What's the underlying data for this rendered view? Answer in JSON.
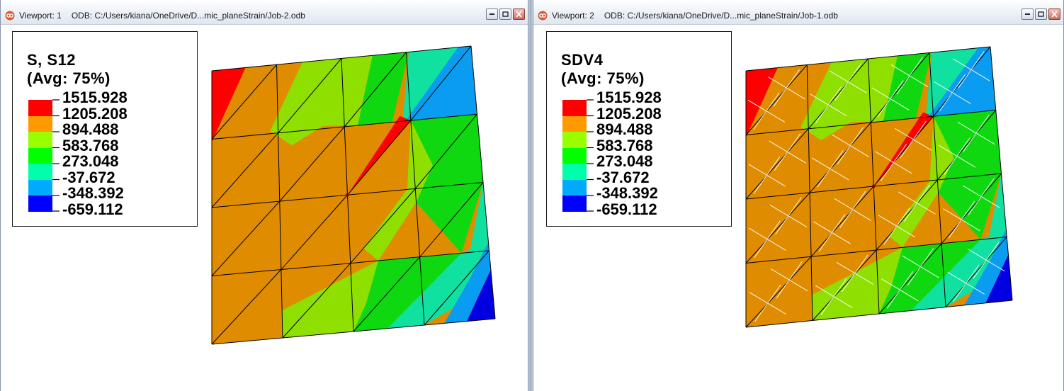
{
  "palette": [
    "#ff0000",
    "#ff9900",
    "#99ff00",
    "#00ff00",
    "#00ffaa",
    "#00aaff",
    "#0000ff"
  ],
  "viewports": [
    {
      "title": "Viewport: 1",
      "odb": "ODB: C:/Users/kiana/OneDrive/D...mic_planeStrain/Job-2.odb",
      "legend": {
        "line1": "S, S12",
        "line2": "(Avg: 75%)",
        "values": [
          "1515.928",
          "1205.208",
          "894.488",
          "583.768",
          "273.048",
          "-37.672",
          "-348.392",
          "-659.112"
        ]
      },
      "window_buttons": [
        "minimize-icon",
        "restore-icon",
        "close-icon"
      ]
    },
    {
      "title": "Viewport: 2",
      "odb": "ODB: C:/Users/kiana/OneDrive/D...mic_planeStrain/Job-1.odb",
      "legend": {
        "line1": "SDV4",
        "line2": "(Avg: 75%)",
        "values": [
          "1515.928",
          "1205.208",
          "894.488",
          "583.768",
          "273.048",
          "-37.672",
          "-348.392",
          "-659.112"
        ]
      },
      "window_buttons": [
        "minimize-icon",
        "restore-icon",
        "close-icon"
      ]
    }
  ]
}
